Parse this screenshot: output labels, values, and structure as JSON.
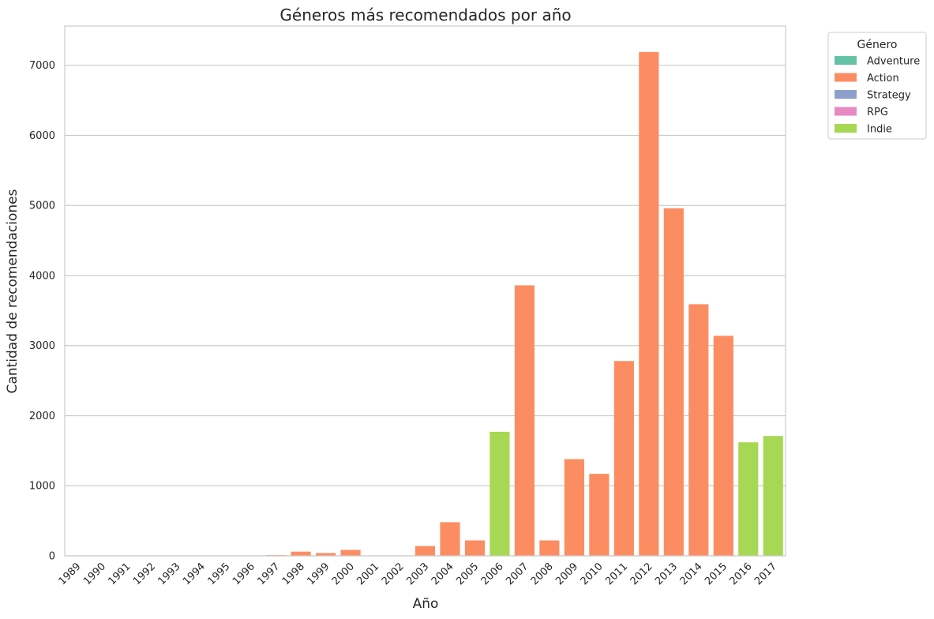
{
  "chart_data": {
    "type": "bar",
    "title": "Géneros más recomendados por año",
    "xlabel": "Año",
    "ylabel": "Cantidad de recomendaciones",
    "ylim": [
      0,
      7560
    ],
    "yticks": [
      0,
      1000,
      2000,
      3000,
      4000,
      5000,
      6000,
      7000
    ],
    "grid": true,
    "legend": {
      "title": "Género",
      "placement": "outside-top-right",
      "entries": [
        {
          "name": "Adventure",
          "color": "#66c2a5"
        },
        {
          "name": "Action",
          "color": "#fc8d62"
        },
        {
          "name": "Strategy",
          "color": "#8da0cb"
        },
        {
          "name": "RPG",
          "color": "#e78ac3"
        },
        {
          "name": "Indie",
          "color": "#a6d854"
        }
      ]
    },
    "categories": [
      "1989",
      "1990",
      "1991",
      "1992",
      "1993",
      "1994",
      "1995",
      "1996",
      "1997",
      "1998",
      "1999",
      "2000",
      "2001",
      "2002",
      "2003",
      "2004",
      "2005",
      "2006",
      "2007",
      "2008",
      "2009",
      "2010",
      "2011",
      "2012",
      "2013",
      "2014",
      "2015",
      "2016",
      "2017"
    ],
    "values": [
      2,
      1,
      1,
      3,
      2,
      2,
      3,
      5,
      10,
      60,
      40,
      85,
      5,
      4,
      140,
      480,
      220,
      1770,
      3860,
      220,
      1380,
      1170,
      2780,
      7190,
      4960,
      3590,
      3140,
      1620,
      1710
    ],
    "genres": [
      "Action",
      "Action",
      "Action",
      "Action",
      "Action",
      "Action",
      "Action",
      "Action",
      "Action",
      "Action",
      "Action",
      "Action",
      "Action",
      "Action",
      "Action",
      "Action",
      "Action",
      "Indie",
      "Action",
      "Action",
      "Action",
      "Action",
      "Action",
      "Action",
      "Action",
      "Action",
      "Action",
      "Indie",
      "Indie"
    ]
  }
}
